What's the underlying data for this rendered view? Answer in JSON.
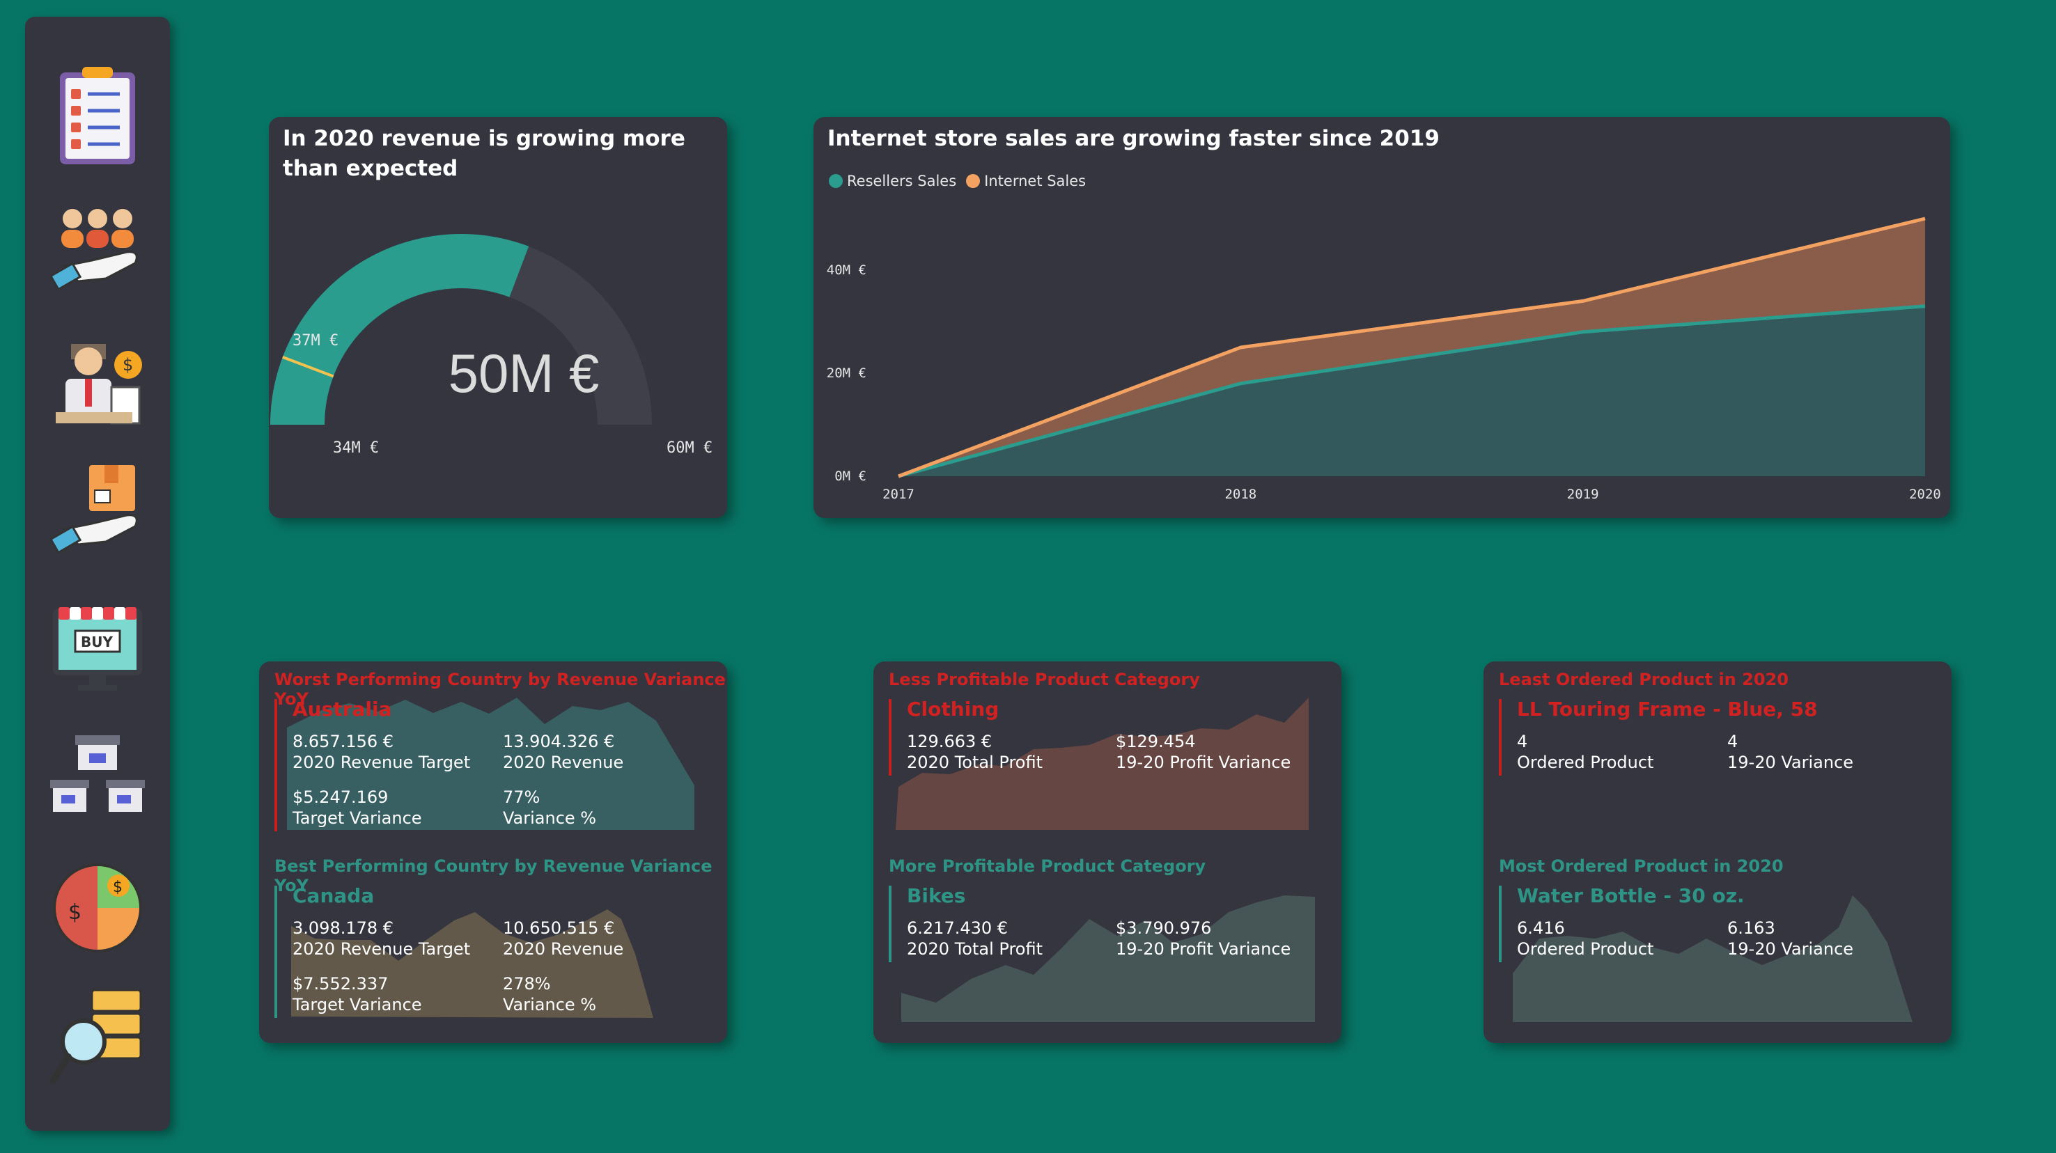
{
  "sidebar": {
    "icons": [
      "clipboard-checklist-icon",
      "team-in-hand-icon",
      "salesman-money-icon",
      "package-in-hand-icon",
      "online-shop-buy-icon",
      "store-network-icon",
      "money-pie-chart-icon",
      "data-search-icon"
    ]
  },
  "gauge": {
    "title": "In 2020 revenue is growing more than expected",
    "value_label": "50M €",
    "target_label": "37M €",
    "min_label": "34M €",
    "max_label": "60M €",
    "value": 50,
    "target": 37,
    "min": 34,
    "max": 60,
    "fill_color": "#2a9d8f",
    "track_color": "#3f4049",
    "target_color": "#f2c14e"
  },
  "line_card": {
    "title": "Internet store sales are growing faster since 2019",
    "legend": [
      {
        "name": "Resellers Sales",
        "color": "#2a9d8f"
      },
      {
        "name": "Internet Sales",
        "color": "#f4a261"
      }
    ]
  },
  "chart_data": {
    "type": "area",
    "title": "Internet store sales are growing faster since 2019",
    "categories": [
      "2017",
      "2018",
      "2019",
      "2020"
    ],
    "series": [
      {
        "name": "Resellers Sales",
        "values": [
          0,
          18,
          28,
          33
        ],
        "color": "#2a9d8f"
      },
      {
        "name": "Internet Sales",
        "values": [
          0,
          25,
          34,
          50
        ],
        "color": "#f4a261"
      }
    ],
    "yticks": [
      "0M €",
      "20M €",
      "40M €"
    ],
    "ylim": [
      0,
      50
    ],
    "legend_position": "top-left",
    "grid": false
  },
  "kpi_country": {
    "worst": {
      "header": "Worst Performing Country by Revenue Variance YoY",
      "name": "Australia",
      "v1": "8.657.156 €",
      "l1": "2020 Revenue Target",
      "v2": "13.904.326 €",
      "l2": "2020 Revenue",
      "v3": "$5.247.169",
      "l3": "Target Variance",
      "v4": "77%",
      "l4": "Variance %"
    },
    "best": {
      "header": "Best Performing Country by Revenue Variance YoY",
      "name": "Canada",
      "v1": "3.098.178 €",
      "l1": "2020 Revenue Target",
      "v2": "10.650.515 €",
      "l2": "2020 Revenue",
      "v3": "$7.552.337",
      "l3": "Target Variance",
      "v4": "278%",
      "l4": "Variance %"
    }
  },
  "kpi_category": {
    "less": {
      "header": "Less Profitable Product Category",
      "name": "Clothing",
      "v1": "129.663 €",
      "l1": "2020 Total Profit",
      "v2": "$129.454",
      "l2": "19-20 Profit Variance"
    },
    "more": {
      "header": "More Profitable Product Category",
      "name": "Bikes",
      "v1": "6.217.430 €",
      "l1": "2020 Total Profit",
      "v2": "$3.790.976",
      "l2": "19-20 Profit Variance"
    }
  },
  "kpi_product": {
    "least": {
      "header": "Least Ordered Product in 2020",
      "name": "LL Touring Frame - Blue, 58",
      "v1": "4",
      "l1": "Ordered Product",
      "v2": "4",
      "l2": "19-20 Variance"
    },
    "most": {
      "header": "Most Ordered Product in 2020",
      "name": "Water Bottle - 30 oz.",
      "v1": "6.416",
      "l1": "Ordered Product",
      "v2": "6.163",
      "l2": "19-20 Variance"
    }
  }
}
